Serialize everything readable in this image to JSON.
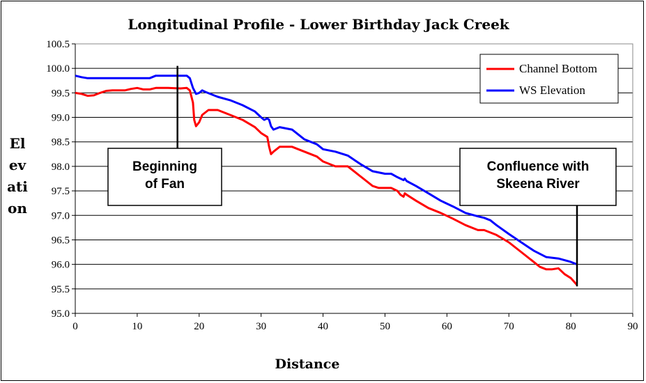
{
  "chart_data": {
    "type": "line",
    "title": "Longitudinal Profile - Lower Birthday Jack Creek",
    "xlabel": "Distance",
    "ylabel_lines": [
      "El",
      "ev",
      "ati",
      "on"
    ],
    "xlim": [
      0,
      90
    ],
    "ylim": [
      95.0,
      100.5
    ],
    "xticks": [
      "0",
      "10",
      "20",
      "30",
      "40",
      "50",
      "60",
      "70",
      "80",
      "90"
    ],
    "yticks": [
      "95.0",
      "95.5",
      "96.0",
      "96.5",
      "97.0",
      "97.5",
      "98.0",
      "98.5",
      "99.0",
      "99.5",
      "100.0",
      "100.5"
    ],
    "grid": "horizontal",
    "legend_position": "top-right",
    "series": [
      {
        "name": "Channel Bottom",
        "color": "#ff0000",
        "points": [
          [
            0,
            99.5
          ],
          [
            1,
            99.48
          ],
          [
            2,
            99.44
          ],
          [
            3,
            99.45
          ],
          [
            4,
            99.5
          ],
          [
            5,
            99.54
          ],
          [
            6,
            99.55
          ],
          [
            8,
            99.55
          ],
          [
            9,
            99.58
          ],
          [
            10,
            99.6
          ],
          [
            11,
            99.57
          ],
          [
            12,
            99.57
          ],
          [
            13,
            99.6
          ],
          [
            15,
            99.6
          ],
          [
            17,
            99.59
          ],
          [
            18,
            99.6
          ],
          [
            18.5,
            99.55
          ],
          [
            19,
            99.3
          ],
          [
            19.2,
            98.95
          ],
          [
            19.5,
            98.82
          ],
          [
            20,
            98.9
          ],
          [
            20.5,
            99.05
          ],
          [
            21.5,
            99.15
          ],
          [
            23,
            99.15
          ],
          [
            24,
            99.1
          ],
          [
            25,
            99.05
          ],
          [
            27,
            98.95
          ],
          [
            29,
            98.8
          ],
          [
            30,
            98.68
          ],
          [
            31,
            98.6
          ],
          [
            31.3,
            98.4
          ],
          [
            31.6,
            98.25
          ],
          [
            32,
            98.3
          ],
          [
            33,
            98.4
          ],
          [
            35,
            98.4
          ],
          [
            37,
            98.3
          ],
          [
            39,
            98.2
          ],
          [
            40,
            98.1
          ],
          [
            41,
            98.05
          ],
          [
            42,
            98.0
          ],
          [
            44,
            98.0
          ],
          [
            45,
            97.9
          ],
          [
            46,
            97.8
          ],
          [
            47,
            97.7
          ],
          [
            48,
            97.6
          ],
          [
            49,
            97.56
          ],
          [
            51,
            97.56
          ],
          [
            52,
            97.5
          ],
          [
            52.5,
            97.42
          ],
          [
            53,
            97.38
          ],
          [
            53.2,
            97.45
          ],
          [
            53.5,
            97.42
          ],
          [
            55,
            97.3
          ],
          [
            57,
            97.15
          ],
          [
            59,
            97.05
          ],
          [
            61,
            96.93
          ],
          [
            63,
            96.8
          ],
          [
            65,
            96.7
          ],
          [
            66,
            96.7
          ],
          [
            67,
            96.65
          ],
          [
            68,
            96.6
          ],
          [
            70,
            96.45
          ],
          [
            72,
            96.25
          ],
          [
            74,
            96.05
          ],
          [
            75,
            95.95
          ],
          [
            76,
            95.9
          ],
          [
            77,
            95.9
          ],
          [
            78,
            95.92
          ],
          [
            79,
            95.8
          ],
          [
            80,
            95.72
          ],
          [
            81,
            95.58
          ]
        ]
      },
      {
        "name": "WS Elevation",
        "color": "#0000ff",
        "points": [
          [
            0,
            99.85
          ],
          [
            1,
            99.82
          ],
          [
            2,
            99.8
          ],
          [
            5,
            99.8
          ],
          [
            10,
            99.8
          ],
          [
            12,
            99.8
          ],
          [
            13,
            99.85
          ],
          [
            15,
            99.85
          ],
          [
            17,
            99.85
          ],
          [
            18,
            99.85
          ],
          [
            18.5,
            99.8
          ],
          [
            19,
            99.6
          ],
          [
            19.5,
            99.48
          ],
          [
            20,
            99.5
          ],
          [
            20.5,
            99.55
          ],
          [
            21,
            99.52
          ],
          [
            23,
            99.42
          ],
          [
            25,
            99.35
          ],
          [
            27,
            99.25
          ],
          [
            29,
            99.12
          ],
          [
            30,
            99.0
          ],
          [
            30.5,
            98.95
          ],
          [
            31,
            98.98
          ],
          [
            31.3,
            98.95
          ],
          [
            31.6,
            98.82
          ],
          [
            32,
            98.75
          ],
          [
            33,
            98.8
          ],
          [
            35,
            98.75
          ],
          [
            37,
            98.55
          ],
          [
            39,
            98.45
          ],
          [
            40,
            98.35
          ],
          [
            42,
            98.3
          ],
          [
            44,
            98.22
          ],
          [
            46,
            98.05
          ],
          [
            48,
            97.9
          ],
          [
            50,
            97.85
          ],
          [
            51,
            97.85
          ],
          [
            52,
            97.78
          ],
          [
            53,
            97.72
          ],
          [
            53.2,
            97.75
          ],
          [
            53.5,
            97.7
          ],
          [
            55,
            97.6
          ],
          [
            57,
            97.45
          ],
          [
            59,
            97.3
          ],
          [
            61,
            97.18
          ],
          [
            63,
            97.05
          ],
          [
            65,
            96.98
          ],
          [
            66,
            96.95
          ],
          [
            67,
            96.9
          ],
          [
            68,
            96.8
          ],
          [
            70,
            96.62
          ],
          [
            72,
            96.45
          ],
          [
            74,
            96.28
          ],
          [
            76,
            96.15
          ],
          [
            78,
            96.12
          ],
          [
            80,
            96.05
          ],
          [
            81,
            96.0
          ]
        ]
      }
    ],
    "annotations": [
      {
        "lines": [
          "Beginning",
          "of Fan"
        ],
        "pointer_x": 16.5,
        "pointer_y": 100.05
      },
      {
        "lines": [
          "Confluence with",
          "Skeena River"
        ],
        "pointer_x": 81,
        "pointer_y": 95.55
      }
    ]
  }
}
